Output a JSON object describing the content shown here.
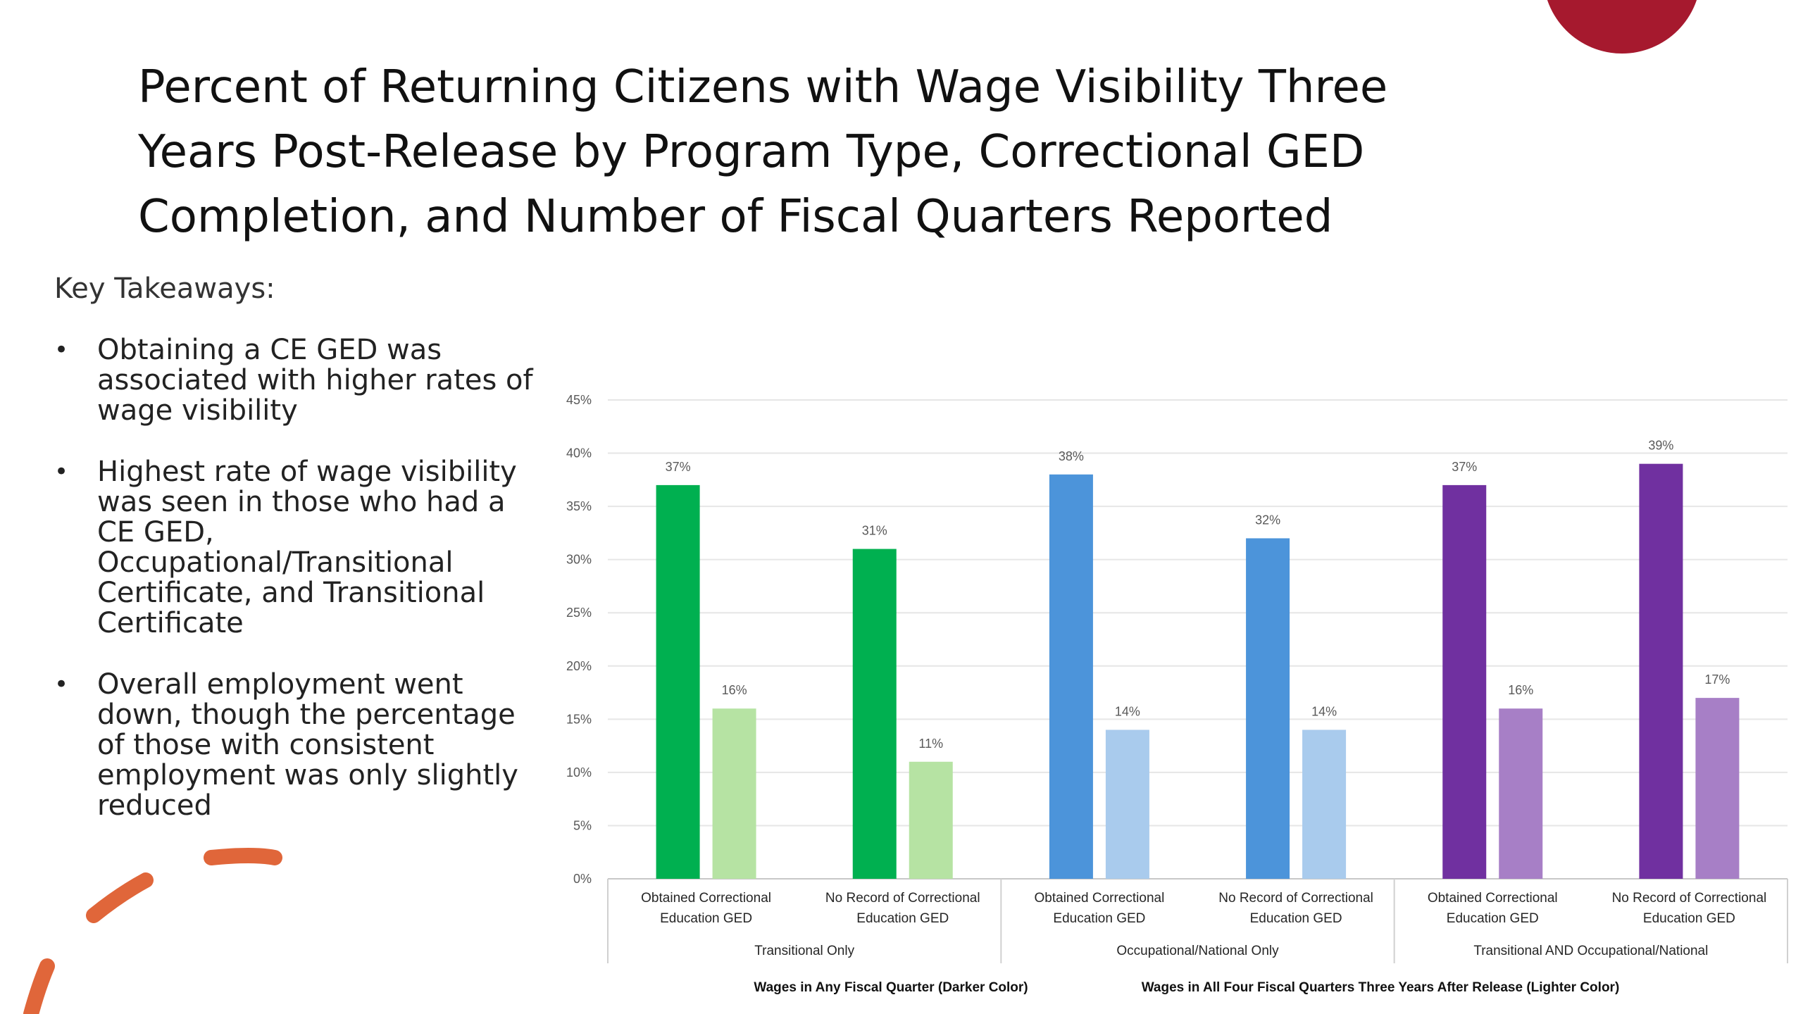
{
  "slide": {
    "title": "Percent of Returning Citizens with Wage Visibility Three Years Post-Release by Program Type, Correctional GED Completion, and Number of Fiscal Quarters Reported",
    "takeaways_heading": "Key Takeaways:",
    "takeaways": [
      "Obtaining a CE GED was associated with higher rates of wage visibility",
      "Highest rate of wage visibility was seen in those who had a CE GED, Occupational/Transitional Certificate, and Transitional Certificate",
      "Overall employment went down, though the percentage of those with consistent employment was only slightly reduced"
    ],
    "bullet_glyph": "•"
  },
  "colors": {
    "accent_circle": "#A6192E",
    "accent_dash": "#E0663A"
  },
  "chart_data": {
    "type": "bar",
    "title": "",
    "xlabel": "",
    "ylabel": "",
    "ylim": [
      0,
      45
    ],
    "y_ticks": [
      "0%",
      "5%",
      "10%",
      "15%",
      "20%",
      "25%",
      "30%",
      "35%",
      "40%",
      "45%"
    ],
    "grid": true,
    "groups": [
      {
        "label": "Transitional Only",
        "dark": "#00B050",
        "light": "#B6E3A3"
      },
      {
        "label": "Occupational/National Only",
        "dark": "#4C94DA",
        "light": "#A9CBED"
      },
      {
        "label": "Transitional AND Occupational/National",
        "dark": "#7030A0",
        "light": "#A77FC6"
      }
    ],
    "categories": [
      "Obtained Correctional Education GED",
      "No Record of Correctional Education GED",
      "Obtained Correctional Education GED",
      "No Record of Correctional Education GED",
      "Obtained Correctional Education GED",
      "No Record of Correctional Education GED"
    ],
    "category_label_lines": [
      [
        "Obtained Correctional",
        "Education GED"
      ],
      [
        "No Record of Correctional",
        "Education GED"
      ],
      [
        "Obtained Correctional",
        "Education GED"
      ],
      [
        "No Record of Correctional",
        "Education GED"
      ],
      [
        "Obtained Correctional",
        "Education GED"
      ],
      [
        "No Record of Correctional",
        "Education GED"
      ]
    ],
    "series": [
      {
        "name": "Wages in Any Fiscal Quarter (Darker Color)",
        "values": [
          37,
          31,
          38,
          32,
          37,
          39
        ],
        "labels": [
          "37%",
          "31%",
          "38%",
          "32%",
          "37%",
          "39%"
        ]
      },
      {
        "name": "Wages in All Four Fiscal Quarters Three Years After Release (Lighter Color)",
        "values": [
          16,
          11,
          14,
          14,
          16,
          17
        ],
        "labels": [
          "16%",
          "11%",
          "14%",
          "14%",
          "16%",
          "17%"
        ]
      }
    ],
    "legend_position": "bottom"
  }
}
